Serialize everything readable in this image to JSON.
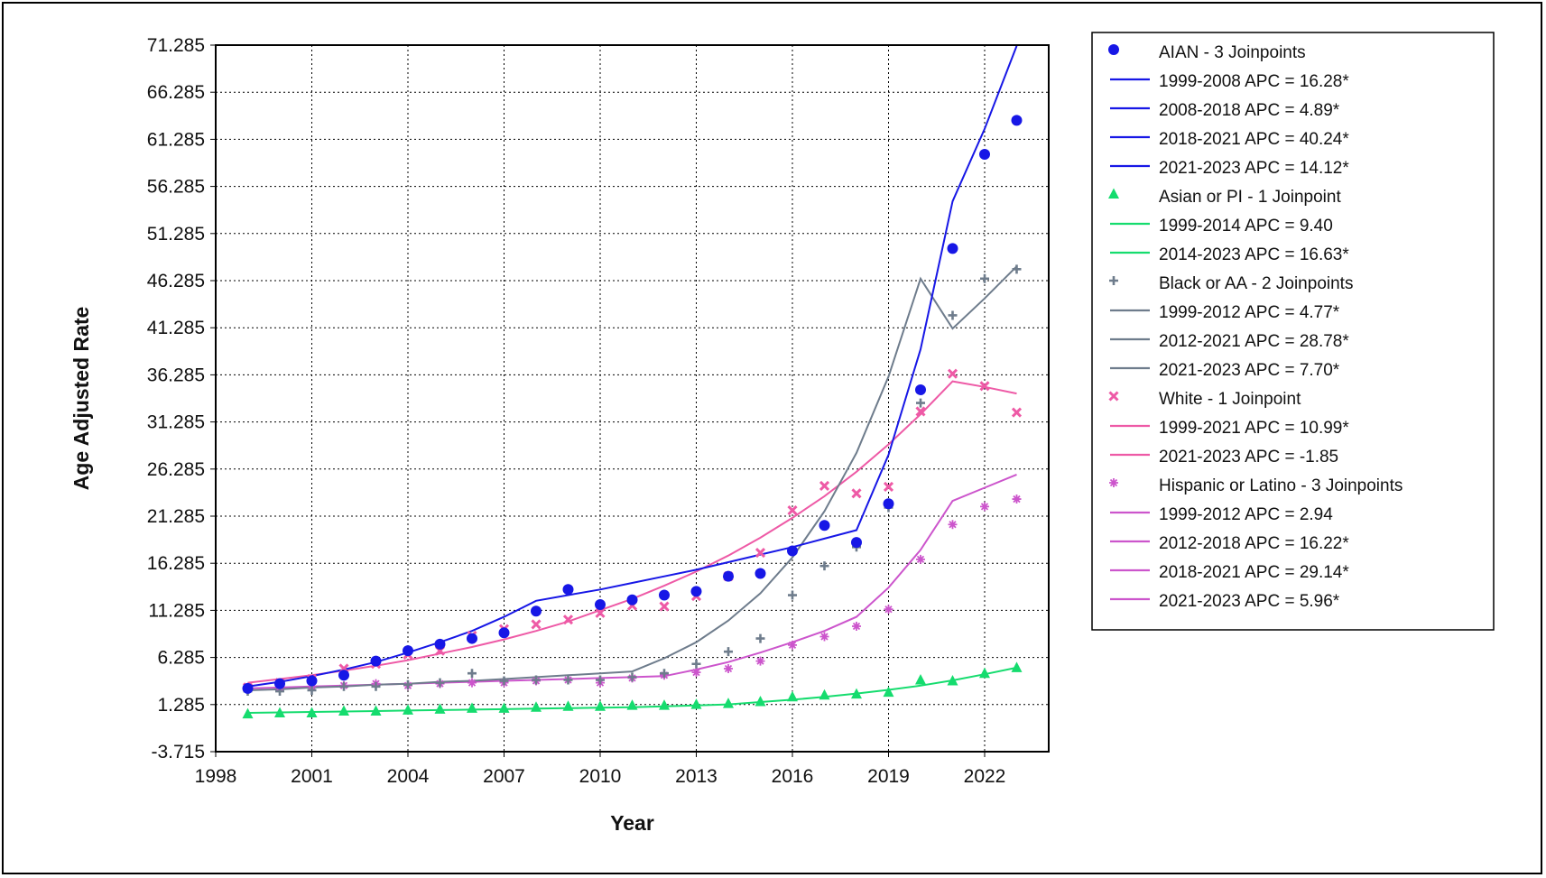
{
  "chart_data": {
    "type": "scatter",
    "xlabel": "Year",
    "ylabel": "Age Adjusted Rate",
    "xlim": [
      1998,
      2024
    ],
    "ylim": [
      -3.715,
      71.285
    ],
    "x_ticks": [
      1998,
      2001,
      2004,
      2007,
      2010,
      2013,
      2016,
      2019,
      2022
    ],
    "y_ticks": [
      "-3.715",
      "1.285",
      "6.285",
      "11.285",
      "16.285",
      "21.285",
      "26.285",
      "31.285",
      "36.285",
      "41.285",
      "46.285",
      "51.285",
      "56.285",
      "61.285",
      "66.285",
      "71.285"
    ],
    "grid": "dotted",
    "legend_position": "right",
    "years": [
      1999,
      2000,
      2001,
      2002,
      2003,
      2004,
      2005,
      2006,
      2007,
      2008,
      2009,
      2010,
      2011,
      2012,
      2013,
      2014,
      2015,
      2016,
      2017,
      2018,
      2019,
      2020,
      2021,
      2022,
      2023
    ],
    "series": [
      {
        "name": "AIAN - 3 Joinpoints",
        "color": "#1717e6",
        "marker": "circle",
        "observed": [
          3.0,
          3.5,
          3.8,
          4.4,
          5.9,
          7.0,
          7.7,
          8.3,
          8.9,
          11.2,
          13.5,
          11.9,
          12.4,
          12.9,
          13.3,
          14.9,
          15.2,
          17.6,
          20.3,
          18.5,
          22.6,
          34.7,
          49.7,
          59.7,
          63.3
        ],
        "trend": [
          3.2,
          3.7,
          4.3,
          5.0,
          5.8,
          6.8,
          7.9,
          9.1,
          10.6,
          12.3,
          12.9,
          13.5,
          14.2,
          14.9,
          15.6,
          16.4,
          17.2,
          18.0,
          18.9,
          19.8,
          27.8,
          39.0,
          54.7,
          62.4,
          71.2
        ],
        "segments": [
          {
            "label": "1999-2008 APC  = 16.28*"
          },
          {
            "label": "2008-2018 APC  =  4.89*"
          },
          {
            "label": "2018-2021 APC  = 40.24*"
          },
          {
            "label": "2021-2023 APC  = 14.12*"
          }
        ]
      },
      {
        "name": "Asian or PI - 1 Joinpoint",
        "color": "#15dc6e",
        "marker": "triangle",
        "observed": [
          0.3,
          0.4,
          0.4,
          0.6,
          0.6,
          0.7,
          0.8,
          0.9,
          0.9,
          1.0,
          1.1,
          1.1,
          1.2,
          1.2,
          1.3,
          1.4,
          1.6,
          2.1,
          2.3,
          2.4,
          2.6,
          3.9,
          3.8,
          4.6,
          5.2
        ],
        "trend": [
          0.4,
          0.45,
          0.5,
          0.55,
          0.6,
          0.65,
          0.7,
          0.75,
          0.8,
          0.85,
          0.9,
          0.95,
          1.0,
          1.1,
          1.2,
          1.3,
          1.55,
          1.8,
          2.1,
          2.45,
          2.85,
          3.3,
          3.85,
          4.5,
          5.2
        ],
        "segments": [
          {
            "label": "1999-2014 APC  =  9.40"
          },
          {
            "label": "2014-2023 APC  = 16.63*"
          }
        ]
      },
      {
        "name": "Black or AA - 2 Joinpoints",
        "color": "#6e7c8c",
        "marker": "plus",
        "observed": [
          2.7,
          2.7,
          2.8,
          3.2,
          3.2,
          3.4,
          3.6,
          4.6,
          3.8,
          3.9,
          3.9,
          3.9,
          4.2,
          4.6,
          5.6,
          6.9,
          8.3,
          12.9,
          16.0,
          18.0,
          22.2,
          33.3,
          42.6,
          46.5,
          47.5
        ],
        "trend": [
          2.8,
          2.9,
          3.1,
          3.2,
          3.4,
          3.5,
          3.7,
          3.8,
          4.0,
          4.2,
          4.4,
          4.6,
          4.8,
          6.2,
          7.9,
          10.2,
          13.1,
          16.9,
          21.8,
          28.0,
          36.1,
          46.5,
          41.2,
          44.4,
          47.8
        ],
        "segments": [
          {
            "label": "1999-2012 APC  =  4.77*"
          },
          {
            "label": "2012-2021 APC  = 28.78*"
          },
          {
            "label": "2021-2023 APC  =  7.70*"
          }
        ]
      },
      {
        "name": "White - 1 Joinpoint",
        "color": "#ee5aa6",
        "marker": "x",
        "observed": [
          3.1,
          3.6,
          4.0,
          5.1,
          5.6,
          6.6,
          7.0,
          8.6,
          9.3,
          9.8,
          10.3,
          11.0,
          11.8,
          11.7,
          12.8,
          14.9,
          17.4,
          21.9,
          24.5,
          23.7,
          24.4,
          32.4,
          36.4,
          35.1,
          32.3
        ],
        "trend": [
          3.6,
          4.0,
          4.4,
          4.9,
          5.4,
          6.0,
          6.7,
          7.4,
          8.2,
          9.1,
          10.1,
          11.3,
          12.5,
          13.9,
          15.4,
          17.1,
          19.0,
          21.1,
          23.4,
          26.0,
          28.9,
          32.1,
          35.6,
          35.0,
          34.3
        ],
        "segments": [
          {
            "label": "1999-2021 APC  = 10.99*"
          },
          {
            "label": "2021-2023 APC  = -1.85"
          }
        ]
      },
      {
        "name": "Hispanic or Latino - 3 Joinpoints",
        "color": "#cc55cc",
        "marker": "star",
        "observed": [
          3.1,
          3.1,
          3.2,
          3.3,
          3.5,
          3.3,
          3.5,
          3.6,
          3.6,
          3.8,
          3.9,
          3.6,
          4.1,
          4.4,
          4.7,
          5.1,
          5.9,
          7.6,
          8.5,
          9.6,
          11.4,
          16.7,
          20.4,
          22.3,
          23.1
        ],
        "trend": [
          3.0,
          3.1,
          3.2,
          3.3,
          3.4,
          3.5,
          3.6,
          3.7,
          3.8,
          3.9,
          4.0,
          4.1,
          4.2,
          4.3,
          5.0,
          5.8,
          6.8,
          7.9,
          9.1,
          10.6,
          13.7,
          17.7,
          22.9,
          24.3,
          25.7
        ],
        "segments": [
          {
            "label": "1999-2012 APC  =  2.94"
          },
          {
            "label": "2012-2018 APC  = 16.22*"
          },
          {
            "label": "2018-2021 APC  = 29.14*"
          },
          {
            "label": "2021-2023 APC  =  5.96*"
          }
        ]
      }
    ]
  }
}
